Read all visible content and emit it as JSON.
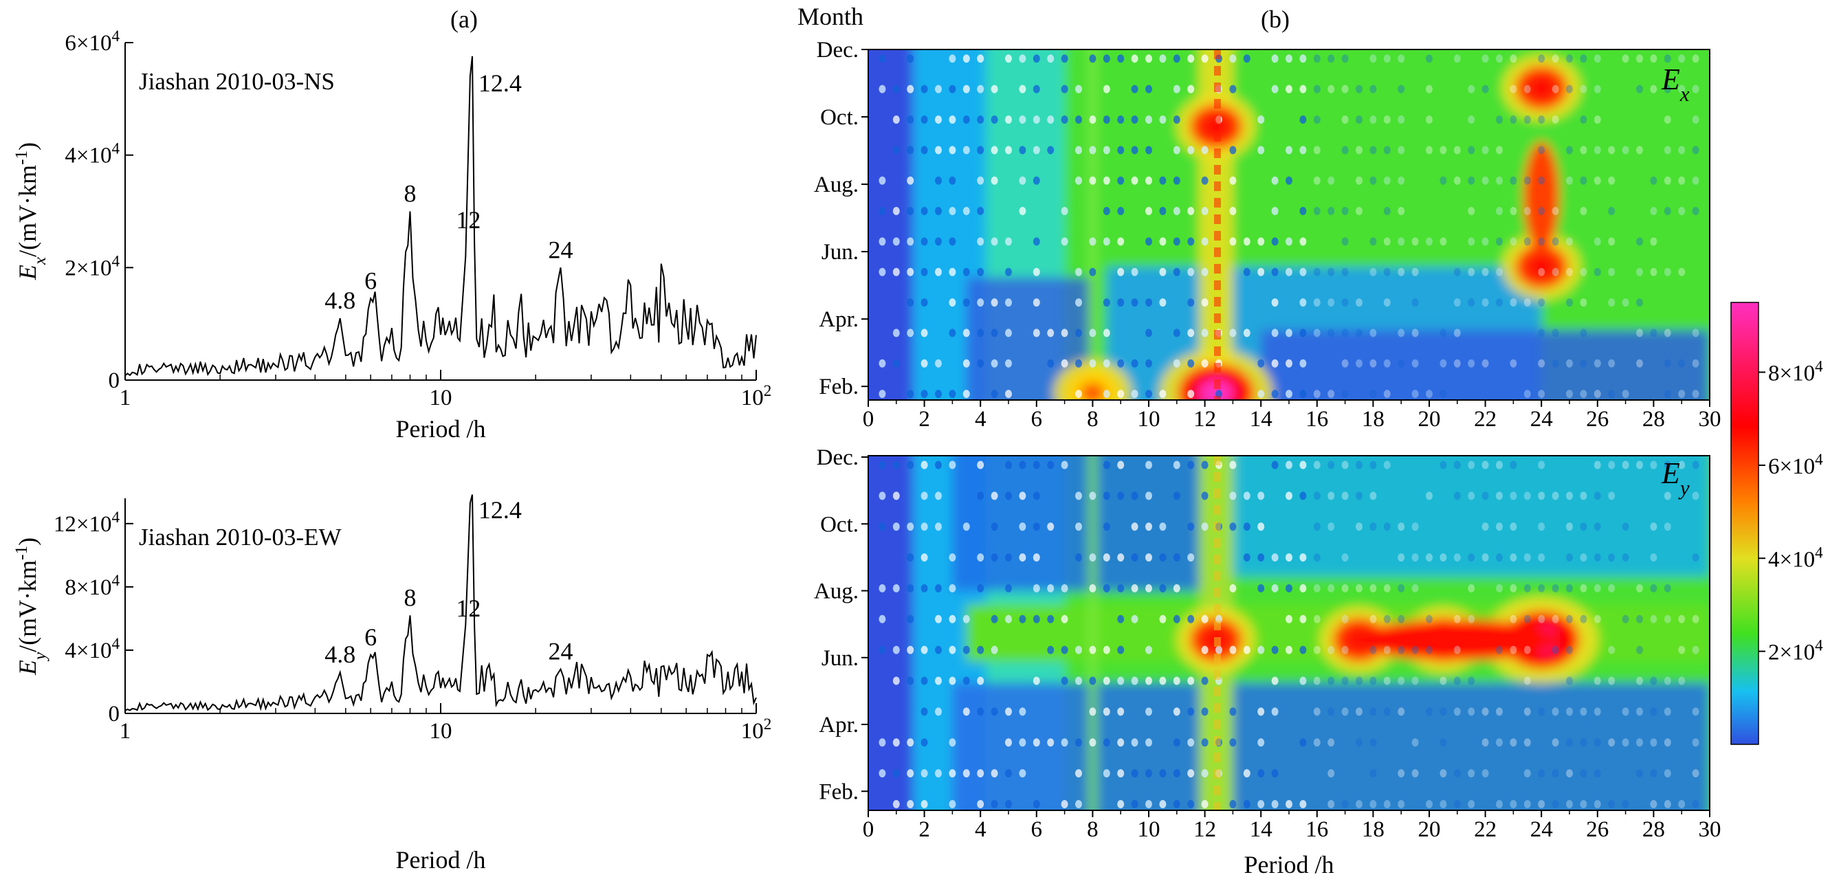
{
  "figure": {
    "panel_a_label": "(a)",
    "panel_b_label": "(b)"
  },
  "chart_data": [
    {
      "type": "line",
      "panel": "(a)",
      "subtitle": "Jiashan 2010-03-NS",
      "xlabel": "Period /h",
      "ylabel_main": "E",
      "ylabel_sub": "x",
      "ylabel_unit": "/(mV·km",
      "ylabel_unit_sup": "-1",
      "ylabel_close": ")",
      "xscale": "log",
      "xlim": [
        1,
        100
      ],
      "ylim": [
        0,
        60000
      ],
      "xticks": [
        {
          "value": 1,
          "label": "1",
          "sup": ""
        },
        {
          "value": 10,
          "label": "10",
          "sup": ""
        },
        {
          "value": 100,
          "label": "10",
          "sup": "2"
        }
      ],
      "yticks": [
        {
          "value": 0,
          "label": "0",
          "sup": ""
        },
        {
          "value": 20000,
          "label": "2×10",
          "sup": "4"
        },
        {
          "value": 40000,
          "label": "4×10",
          "sup": "4"
        },
        {
          "value": 60000,
          "label": "6×10",
          "sup": "4"
        }
      ],
      "peaks": [
        {
          "period": 4.8,
          "value": 11000,
          "label": "4.8"
        },
        {
          "period": 6,
          "value": 14500,
          "label": "6"
        },
        {
          "period": 8,
          "value": 30000,
          "label": "8"
        },
        {
          "period": 12,
          "value": 22000,
          "label": "12"
        },
        {
          "period": 12.4,
          "value": 54000,
          "label": "12.4"
        },
        {
          "period": 24,
          "value": 20000,
          "label": "24"
        }
      ],
      "x": [
        1,
        1.5,
        2,
        2.5,
        3,
        3.5,
        4,
        4.5,
        4.8,
        5,
        5.5,
        6,
        6.5,
        7,
        7.5,
        8,
        8.5,
        9,
        9.5,
        10,
        10.5,
        11,
        11.5,
        12,
        12.4,
        13,
        14,
        15,
        16,
        17,
        18,
        20,
        22,
        24,
        25,
        27,
        30,
        33,
        36,
        40,
        45,
        50,
        55,
        60,
        65,
        70,
        80,
        90,
        100
      ],
      "y": [
        1800,
        2000,
        2300,
        2600,
        3000,
        3300,
        3600,
        4000,
        11000,
        4200,
        5000,
        14500,
        5200,
        6000,
        5800,
        30000,
        6000,
        7500,
        6500,
        10000,
        7000,
        8500,
        7000,
        22000,
        54000,
        9000,
        6500,
        11000,
        7000,
        8000,
        10000,
        6000,
        9000,
        20000,
        9000,
        12000,
        8000,
        10000,
        7000,
        13000,
        9000,
        14000,
        10000,
        14000,
        11000,
        8000,
        3000,
        4000,
        8000
      ]
    },
    {
      "type": "line",
      "panel": "(a)",
      "subtitle": "Jiashan 2010-03-EW",
      "xlabel": "Period /h",
      "ylabel_main": "E",
      "ylabel_sub": "y",
      "ylabel_unit": "/(mV·km",
      "ylabel_unit_sup": "-1",
      "ylabel_close": ")",
      "xscale": "log",
      "xlim": [
        1,
        100
      ],
      "ylim": [
        0,
        136000
      ],
      "xticks": [
        {
          "value": 1,
          "label": "1",
          "sup": ""
        },
        {
          "value": 10,
          "label": "10",
          "sup": ""
        },
        {
          "value": 100,
          "label": "10",
          "sup": "2"
        }
      ],
      "yticks": [
        {
          "value": 0,
          "label": "0",
          "sup": ""
        },
        {
          "value": 40000,
          "label": "4×10",
          "sup": "4"
        },
        {
          "value": 80000,
          "label": "8×10",
          "sup": "4"
        },
        {
          "value": 120000,
          "label": "12×10",
          "sup": "4"
        }
      ],
      "peaks": [
        {
          "period": 4.8,
          "value": 26000,
          "label": "4.8"
        },
        {
          "period": 6,
          "value": 37000,
          "label": "6"
        },
        {
          "period": 8,
          "value": 62000,
          "label": "8"
        },
        {
          "period": 12,
          "value": 56000,
          "label": "12"
        },
        {
          "period": 12.4,
          "value": 133000,
          "label": "12.4"
        },
        {
          "period": 24,
          "value": 28000,
          "label": "24"
        }
      ],
      "x": [
        1,
        1.5,
        2,
        2.5,
        3,
        3.5,
        4,
        4.5,
        4.8,
        5,
        5.5,
        6,
        6.5,
        7,
        7.5,
        8,
        8.5,
        9,
        9.5,
        10,
        10.5,
        11,
        11.5,
        12,
        12.4,
        13,
        14,
        15,
        16,
        17,
        18,
        20,
        22,
        24,
        25,
        27,
        30,
        33,
        36,
        40,
        45,
        50,
        55,
        60,
        65,
        70,
        80,
        90,
        100
      ],
      "y": [
        4000,
        4500,
        5000,
        6000,
        7000,
        8000,
        9000,
        10000,
        26000,
        9000,
        12000,
        37000,
        11000,
        13000,
        12000,
        62000,
        13000,
        18000,
        14000,
        20000,
        15000,
        17000,
        14000,
        56000,
        133000,
        15000,
        28000,
        12000,
        16000,
        9000,
        14000,
        12000,
        16000,
        28000,
        18000,
        30000,
        15000,
        10000,
        20000,
        18000,
        24000,
        20000,
        28000,
        26000,
        22000,
        28000,
        20000,
        26000,
        10000
      ]
    },
    {
      "type": "heatmap",
      "panel": "(b)",
      "label_main": "E",
      "label_sub": "x",
      "xlim": [
        0,
        30
      ],
      "xticks": [
        0,
        2,
        4,
        6,
        8,
        10,
        12,
        14,
        16,
        18,
        20,
        22,
        24,
        26,
        28,
        30
      ],
      "ylabel": "Month",
      "ytick_labels": [
        "Dec.",
        "Oct.",
        "Aug.",
        "Jun.",
        "Apr.",
        "Feb."
      ],
      "hot_spots": [
        {
          "period": 12.4,
          "month": "Feb.",
          "level": "very high"
        },
        {
          "period": 12.4,
          "month": "Oct.",
          "level": "high"
        },
        {
          "period": 24,
          "month": "Jun.",
          "level": "high"
        },
        {
          "period": 24,
          "month": "Nov.",
          "level": "high"
        },
        {
          "period": 8,
          "month": "Feb.",
          "level": "moderate"
        }
      ]
    },
    {
      "type": "heatmap",
      "panel": "(b)",
      "label_main": "E",
      "label_sub": "y",
      "xlabel": "Period /h",
      "xlim": [
        0,
        30
      ],
      "xticks": [
        0,
        2,
        4,
        6,
        8,
        10,
        12,
        14,
        16,
        18,
        20,
        22,
        24,
        26,
        28,
        30
      ],
      "ytick_labels": [
        "Dec.",
        "Oct.",
        "Aug.",
        "Jun.",
        "Apr.",
        "Feb."
      ],
      "hot_spots": [
        {
          "period": 24,
          "month": "Jul.",
          "level": "very high"
        },
        {
          "period": 20.5,
          "month": "Jul.",
          "level": "high"
        },
        {
          "period": 17.5,
          "month": "Jul.",
          "level": "high"
        },
        {
          "period": 12.4,
          "month": "Jul.",
          "level": "high"
        }
      ]
    },
    {
      "type": "colorbar",
      "range": [
        0,
        95000
      ],
      "colors": [
        "#3050e0",
        "#18c0f0",
        "#40e020",
        "#e0e020",
        "#ff8000",
        "#ff0000",
        "#ff30c0"
      ],
      "ticks": [
        {
          "value": 20000,
          "label": "2×10",
          "sup": "4"
        },
        {
          "value": 40000,
          "label": "4×10",
          "sup": "4"
        },
        {
          "value": 60000,
          "label": "6×10",
          "sup": "4"
        },
        {
          "value": 80000,
          "label": "8×10",
          "sup": "4"
        }
      ]
    }
  ]
}
